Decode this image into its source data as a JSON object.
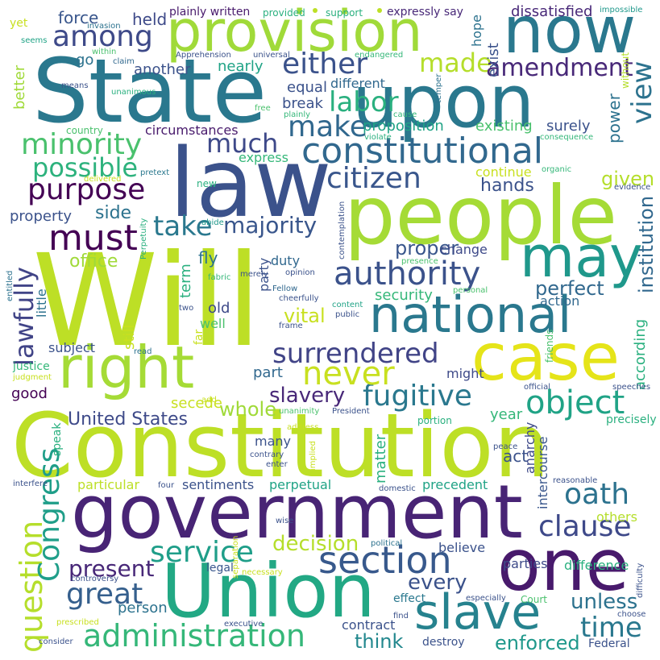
{
  "words": [
    {
      "id": "will",
      "text": "Will",
      "color": "#bddf26"
    },
    {
      "id": "constitution",
      "text": "Constitution",
      "color": "#bddf26"
    },
    {
      "id": "state",
      "text": "State",
      "color": "#2a788e"
    },
    {
      "id": "law",
      "text": "law",
      "color": "#3b528b"
    },
    {
      "id": "government",
      "text": "government",
      "color": "#482475"
    },
    {
      "id": "people",
      "text": "people",
      "color": "#a5db36"
    },
    {
      "id": "union",
      "text": "Union",
      "color": "#22a884"
    },
    {
      "id": "upon",
      "text": "upon",
      "color": "#2a788e"
    },
    {
      "id": "now",
      "text": "now",
      "color": "#2a788e"
    },
    {
      "id": "provision",
      "text": "provision",
      "color": "#a0da39"
    },
    {
      "id": "one",
      "text": "one",
      "color": "#481a6c"
    },
    {
      "id": "right",
      "text": "right",
      "color": "#a5db36"
    },
    {
      "id": "case",
      "text": "case",
      "color": "#e5e419"
    },
    {
      "id": "may",
      "text": "may",
      "color": "#1f988b"
    },
    {
      "id": "national",
      "text": "national",
      "color": "#2a788e"
    },
    {
      "id": "slave",
      "text": "slave",
      "color": "#26828e"
    },
    {
      "id": "constitutional",
      "text": "constitutional",
      "color": "#31688e"
    },
    {
      "id": "section",
      "text": "section",
      "color": "#38598c"
    },
    {
      "id": "authority",
      "text": "authority",
      "color": "#3b528b"
    },
    {
      "id": "administration",
      "text": "administration",
      "color": "#35b779"
    },
    {
      "id": "must",
      "text": "must",
      "color": "#440154"
    },
    {
      "id": "citizen",
      "text": "citizen",
      "color": "#39568c"
    },
    {
      "id": "purpose",
      "text": "purpose",
      "color": "#440154"
    },
    {
      "id": "minority",
      "text": "minority",
      "color": "#4ac16d"
    },
    {
      "id": "surrendered",
      "text": "surrendered",
      "color": "#414487"
    },
    {
      "id": "object",
      "text": "object",
      "color": "#20a386"
    },
    {
      "id": "fugitive",
      "text": "fugitive",
      "color": "#2a788e"
    },
    {
      "id": "never",
      "text": "never",
      "color": "#c8e020"
    },
    {
      "id": "either",
      "text": "either",
      "color": "#3b528b"
    },
    {
      "id": "among",
      "text": "among",
      "color": "#3e4a89"
    },
    {
      "id": "question",
      "text": "question",
      "color": "#b5de2b"
    },
    {
      "id": "congress",
      "text": "Congress",
      "color": "#1f9e89"
    },
    {
      "id": "service",
      "text": "service",
      "color": "#1f9e89"
    },
    {
      "id": "oath",
      "text": "oath",
      "color": "#2c728e"
    },
    {
      "id": "clause",
      "text": "clause",
      "color": "#3e4989"
    },
    {
      "id": "great",
      "text": "great",
      "color": "#355f8d"
    },
    {
      "id": "time",
      "text": "time",
      "color": "#2a788e"
    },
    {
      "id": "make",
      "text": "make",
      "color": "#31688e"
    },
    {
      "id": "labor",
      "text": "labor",
      "color": "#2ab07f"
    },
    {
      "id": "made",
      "text": "made",
      "color": "#b5de2b"
    },
    {
      "id": "much",
      "text": "much",
      "color": "#3e4989"
    },
    {
      "id": "possible",
      "text": "possible",
      "color": "#2db27d"
    },
    {
      "id": "take",
      "text": "take",
      "color": "#2a788e"
    },
    {
      "id": "majority",
      "text": "majority",
      "color": "#39568c"
    },
    {
      "id": "amendment",
      "text": "amendment",
      "color": "#482878"
    },
    {
      "id": "view",
      "text": "view",
      "color": "#2c728e"
    },
    {
      "id": "present",
      "text": "present",
      "color": "#482878"
    },
    {
      "id": "lawfully",
      "text": "lawfully",
      "color": "#414487"
    },
    {
      "id": "institution",
      "text": "institution",
      "color": "#31688e"
    },
    {
      "id": "decision",
      "text": "decision",
      "color": "#b5de2b"
    },
    {
      "id": "enforced",
      "text": "enforced",
      "color": "#1f988b"
    },
    {
      "id": "unless",
      "text": "unless",
      "color": "#2c728e"
    },
    {
      "id": "think",
      "text": "think",
      "color": "#23888e"
    },
    {
      "id": "every",
      "text": "every",
      "color": "#3b528b"
    },
    {
      "id": "united_states",
      "text": "United States",
      "color": "#3e4a89"
    },
    {
      "id": "slavery",
      "text": "slavery",
      "color": "#482878"
    },
    {
      "id": "whole",
      "text": "whole",
      "color": "#a0da39"
    },
    {
      "id": "vital",
      "text": "vital",
      "color": "#c8e020"
    },
    {
      "id": "perfect",
      "text": "perfect",
      "color": "#31688e"
    },
    {
      "id": "proper",
      "text": "proper",
      "color": "#39568c"
    },
    {
      "id": "given",
      "text": "given",
      "color": "#b5de2b"
    },
    {
      "id": "hands",
      "text": "hands",
      "color": "#3b528b"
    },
    {
      "id": "office",
      "text": "office",
      "color": "#a0da39"
    },
    {
      "id": "side",
      "text": "side",
      "color": "#2c728e"
    },
    {
      "id": "property",
      "text": "property",
      "color": "#3b528b"
    },
    {
      "id": "power",
      "text": "power",
      "color": "#2c728e"
    },
    {
      "id": "surely",
      "text": "surely",
      "color": "#3b528b"
    },
    {
      "id": "existing",
      "text": "existing",
      "color": "#4ac16d"
    },
    {
      "id": "proposition",
      "text": "proposition",
      "color": "#20a386"
    },
    {
      "id": "different",
      "text": "different",
      "color": "#31688e"
    },
    {
      "id": "equal",
      "text": "equal",
      "color": "#3b528b"
    },
    {
      "id": "break",
      "text": "break",
      "color": "#3b528b"
    },
    {
      "id": "nearly",
      "text": "nearly",
      "color": "#20a386"
    },
    {
      "id": "another",
      "text": "another",
      "color": "#3b528b"
    },
    {
      "id": "better",
      "text": "better",
      "color": "#a0da39"
    },
    {
      "id": "go",
      "text": "go",
      "color": "#2c728e"
    },
    {
      "id": "held",
      "text": "held",
      "color": "#3e4a89"
    },
    {
      "id": "force",
      "text": "force",
      "color": "#39568c"
    },
    {
      "id": "exist",
      "text": "exist",
      "color": "#3b528b"
    },
    {
      "id": "hope",
      "text": "hope",
      "color": "#2c728e"
    },
    {
      "id": "dissatisfied",
      "text": "dissatisfied",
      "color": "#482878"
    },
    {
      "id": "circumstances",
      "text": "circumstances",
      "color": "#481a6c"
    },
    {
      "id": "express",
      "text": "express",
      "color": "#35b779"
    },
    {
      "id": "continue",
      "text": "continue",
      "color": "#c8e020"
    },
    {
      "id": "change",
      "text": "change",
      "color": "#3e4a89"
    },
    {
      "id": "security",
      "text": "security",
      "color": "#35b779"
    },
    {
      "id": "action",
      "text": "action",
      "color": "#31688e"
    },
    {
      "id": "according",
      "text": "according",
      "color": "#2ab07f"
    },
    {
      "id": "fly",
      "text": "fly",
      "color": "#2c728e"
    },
    {
      "id": "term",
      "text": "term",
      "color": "#2ab07f"
    },
    {
      "id": "old",
      "text": "old",
      "color": "#3e4a89"
    },
    {
      "id": "still",
      "text": "still",
      "color": "#c8e020"
    },
    {
      "id": "well",
      "text": "well",
      "color": "#4ac16d"
    },
    {
      "id": "duty",
      "text": "duty",
      "color": "#31688e"
    },
    {
      "id": "party",
      "text": "party",
      "color": "#3b528b"
    },
    {
      "id": "part",
      "text": "part",
      "color": "#31688e"
    },
    {
      "id": "might",
      "text": "might",
      "color": "#3e4a89"
    },
    {
      "id": "subject",
      "text": "subject",
      "color": "#3b528b"
    },
    {
      "id": "good",
      "text": "good",
      "color": "#440154"
    },
    {
      "id": "secede",
      "text": "secede",
      "color": "#c8e020"
    },
    {
      "id": "little",
      "text": "little",
      "color": "#2c728e"
    },
    {
      "id": "year",
      "text": "year",
      "color": "#35b779"
    },
    {
      "id": "precisely",
      "text": "precisely",
      "color": "#2ab07f"
    },
    {
      "id": "many",
      "text": "many",
      "color": "#3b528b"
    },
    {
      "id": "act",
      "text": "act",
      "color": "#3b528b"
    },
    {
      "id": "sentiments",
      "text": "sentiments",
      "color": "#3b528b"
    },
    {
      "id": "perpetual",
      "text": "perpetual",
      "color": "#20a386"
    },
    {
      "id": "precedent",
      "text": "precedent",
      "color": "#20a386"
    },
    {
      "id": "particular",
      "text": "particular",
      "color": "#bddf26"
    },
    {
      "id": "matter",
      "text": "matter",
      "color": "#2ab07f"
    },
    {
      "id": "intercourse",
      "text": "intercourse",
      "color": "#39568c"
    },
    {
      "id": "anarchy",
      "text": "anarchy",
      "color": "#3e4a89"
    },
    {
      "id": "others",
      "text": "others",
      "color": "#b5de2b"
    },
    {
      "id": "difference",
      "text": "difference",
      "color": "#2ab07f"
    },
    {
      "id": "parties",
      "text": "parties",
      "color": "#3e4a89"
    },
    {
      "id": "believe",
      "text": "believe",
      "color": "#3b528b"
    },
    {
      "id": "legal",
      "text": "legal",
      "color": "#39568c"
    },
    {
      "id": "person",
      "text": "person",
      "color": "#2c728e"
    },
    {
      "id": "effect",
      "text": "effect",
      "color": "#2a788e"
    },
    {
      "id": "contract",
      "text": "contract",
      "color": "#3b528b"
    },
    {
      "id": "destroy",
      "text": "destroy",
      "color": "#3b528b"
    },
    {
      "id": "federal",
      "text": "Federal",
      "color": "#3b528b"
    },
    {
      "id": "court",
      "text": "Court",
      "color": "#4ac16d"
    },
    {
      "id": "speak",
      "text": "speak",
      "color": "#2ab07f"
    },
    {
      "id": "justice",
      "text": "justice",
      "color": "#35b779"
    },
    {
      "id": "plainly_written",
      "text": "plainly written",
      "color": "#481a6c"
    },
    {
      "id": "provided",
      "text": "provided",
      "color": "#2ab07f"
    },
    {
      "id": "support",
      "text": "support",
      "color": "#2ab07f"
    },
    {
      "id": "expressly_say",
      "text": "expressly say",
      "color": "#482878"
    },
    {
      "id": "impossible",
      "text": "impossible",
      "color": "#1f988b"
    },
    {
      "id": "yet",
      "text": "yet",
      "color": "#c8e020"
    },
    {
      "id": "invasion",
      "text": "invasion",
      "color": "#2c728e"
    },
    {
      "id": "seems",
      "text": "seems",
      "color": "#20a386"
    },
    {
      "id": "within",
      "text": "within",
      "color": "#4ac16d"
    },
    {
      "id": "claim",
      "text": "claim",
      "color": "#31688e"
    },
    {
      "id": "apprehension",
      "text": "Apprehension",
      "color": "#3b528b"
    },
    {
      "id": "universal",
      "text": "universal",
      "color": "#3b528b"
    },
    {
      "id": "endangered",
      "text": "endangered",
      "color": "#35b779"
    },
    {
      "id": "means",
      "text": "means",
      "color": "#3b528b"
    },
    {
      "id": "unanimous",
      "text": "unanimous",
      "color": "#2ab07f"
    },
    {
      "id": "without",
      "text": "without",
      "color": "#b5de2b"
    },
    {
      "id": "temper",
      "text": "temper",
      "color": "#2c728e"
    },
    {
      "id": "free",
      "text": "free",
      "color": "#4ac16d"
    },
    {
      "id": "plainly",
      "text": "plainly",
      "color": "#35b779"
    },
    {
      "id": "cause",
      "text": "cause",
      "color": "#35b779"
    },
    {
      "id": "violate",
      "text": "violate",
      "color": "#2ab07f"
    },
    {
      "id": "consequence",
      "text": "consequence",
      "color": "#35b779"
    },
    {
      "id": "country",
      "text": "country",
      "color": "#4ac16d"
    },
    {
      "id": "organic",
      "text": "organic",
      "color": "#35b779"
    },
    {
      "id": "evidence",
      "text": "evidence",
      "color": "#3b528b"
    },
    {
      "id": "delivered",
      "text": "delivered",
      "color": "#c8e020"
    },
    {
      "id": "pretext",
      "text": "pretext",
      "color": "#2a788e"
    },
    {
      "id": "new",
      "text": "new",
      "color": "#2ab07f"
    },
    {
      "id": "perpetuity",
      "text": "Perpetuity",
      "color": "#2ab07f"
    },
    {
      "id": "abide",
      "text": "abide",
      "color": "#1f988b"
    },
    {
      "id": "contemplation",
      "text": "contemplation",
      "color": "#3b528b"
    },
    {
      "id": "presence",
      "text": "presence",
      "color": "#4ac16d"
    },
    {
      "id": "entitled",
      "text": "entitled",
      "color": "#2c728e"
    },
    {
      "id": "fabric",
      "text": "fabric",
      "color": "#35b779"
    },
    {
      "id": "merely",
      "text": "merely",
      "color": "#3b528b"
    },
    {
      "id": "opinion",
      "text": "opinion",
      "color": "#3b528b"
    },
    {
      "id": "fellow",
      "text": "Fellow",
      "color": "#31688e"
    },
    {
      "id": "cheerfully",
      "text": "cheerfully",
      "color": "#3b528b"
    },
    {
      "id": "personal",
      "text": "personal",
      "color": "#4ac16d"
    },
    {
      "id": "content",
      "text": "content",
      "color": "#20a386"
    },
    {
      "id": "two",
      "text": "two",
      "color": "#3b528b"
    },
    {
      "id": "public",
      "text": "public",
      "color": "#3b528b"
    },
    {
      "id": "frame",
      "text": "frame",
      "color": "#3b528b"
    },
    {
      "id": "far",
      "text": "far",
      "color": "#c8e020"
    },
    {
      "id": "read",
      "text": "read",
      "color": "#2c728e"
    },
    {
      "id": "judgment",
      "text": "judgment",
      "color": "#c8e020"
    },
    {
      "id": "add",
      "text": "add",
      "color": "#c8e020"
    },
    {
      "id": "friends",
      "text": "friends",
      "color": "#4ac16d"
    },
    {
      "id": "official",
      "text": "official",
      "color": "#3b528b"
    },
    {
      "id": "speeches",
      "text": "speeches",
      "color": "#3b528b"
    },
    {
      "id": "unanimity",
      "text": "unanimity",
      "color": "#4ac16d"
    },
    {
      "id": "president",
      "text": "President",
      "color": "#3b528b"
    },
    {
      "id": "address",
      "text": "address",
      "color": "#c8e020"
    },
    {
      "id": "portion",
      "text": "portion",
      "color": "#2ab07f"
    },
    {
      "id": "peace",
      "text": "peace",
      "color": "#3b528b"
    },
    {
      "id": "contrary",
      "text": "contrary",
      "color": "#3b528b"
    },
    {
      "id": "enter",
      "text": "enter",
      "color": "#3b528b"
    },
    {
      "id": "implied",
      "text": "implied",
      "color": "#c8e020"
    },
    {
      "id": "interfere",
      "text": "interfere",
      "color": "#3b528b"
    },
    {
      "id": "four",
      "text": "four",
      "color": "#3b528b"
    },
    {
      "id": "domestic",
      "text": "domestic",
      "color": "#3b528b"
    },
    {
      "id": "reasonable",
      "text": "reasonable",
      "color": "#3b528b"
    },
    {
      "id": "wise",
      "text": "wise",
      "color": "#3b528b"
    },
    {
      "id": "separation",
      "text": "separation",
      "color": "#c8e020"
    },
    {
      "id": "political",
      "text": "political",
      "color": "#2c728e"
    },
    {
      "id": "controversy",
      "text": "controversy",
      "color": "#3b528b"
    },
    {
      "id": "necessary",
      "text": "necessary",
      "color": "#c8e020"
    },
    {
      "id": "difficulty",
      "text": "difficulty",
      "color": "#3b528b"
    },
    {
      "id": "especially",
      "text": "especially",
      "color": "#3b528b"
    },
    {
      "id": "choose",
      "text": "choose",
      "color": "#3b528b"
    },
    {
      "id": "prescribed",
      "text": "prescribed",
      "color": "#c8e020"
    },
    {
      "id": "executive",
      "text": "executive",
      "color": "#3b528b"
    },
    {
      "id": "find",
      "text": "find",
      "color": "#3b528b"
    },
    {
      "id": "consider",
      "text": "consider",
      "color": "#3b528b"
    }
  ],
  "colors": {
    "background": "#ffffff",
    "separator_dot": "#bddf26"
  }
}
